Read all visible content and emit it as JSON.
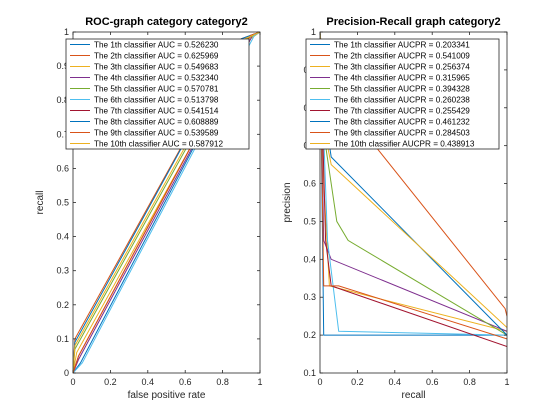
{
  "chart_data": [
    {
      "type": "line",
      "title": "ROC-graph category category2",
      "xlabel": "false positive rate",
      "ylabel": "recall",
      "xlim": [
        0,
        1
      ],
      "ylim": [
        0,
        1
      ],
      "xticks": [
        0,
        0.2,
        0.4,
        0.6,
        0.8,
        1
      ],
      "xtick_labels": [
        "0",
        "0.2",
        "0.4",
        "0.6",
        "0.8",
        "1"
      ],
      "yticks": [
        0,
        0.1,
        0.2,
        0.3,
        0.4,
        0.5,
        0.6,
        0.7,
        0.8,
        0.9,
        1
      ],
      "ytick_labels": [
        "0",
        "0.1",
        "0.2",
        "0.3",
        "0.4",
        "0.5",
        "0.6",
        "0.7",
        "0.8",
        "0.9",
        "1"
      ],
      "legend_position": "top",
      "series": [
        {
          "name": "The 1th classifier AUC = 0.526230",
          "color": "#0072BD",
          "x": [
            0,
            0.04,
            0.96,
            1
          ],
          "y": [
            0,
            0.03,
            0.99,
            1
          ]
        },
        {
          "name": "The 2th classifier AUC = 0.625969",
          "color": "#D95319",
          "x": [
            0,
            0.01,
            0.9,
            1
          ],
          "y": [
            0,
            0.1,
            0.98,
            1
          ]
        },
        {
          "name": "The 3th classifier AUC = 0.549683",
          "color": "#EDB120",
          "x": [
            0,
            0.02,
            0.95,
            1
          ],
          "y": [
            0,
            0.06,
            0.98,
            1
          ]
        },
        {
          "name": "The 4th classifier AUC = 0.532340",
          "color": "#7E2F8E",
          "x": [
            0,
            0.03,
            0.96,
            1
          ],
          "y": [
            0,
            0.04,
            0.99,
            1
          ]
        },
        {
          "name": "The 5th classifier AUC = 0.570781",
          "color": "#77AC30",
          "x": [
            0,
            0.01,
            0.93,
            1
          ],
          "y": [
            0,
            0.07,
            0.98,
            1
          ]
        },
        {
          "name": "The 6th classifier AUC = 0.513798",
          "color": "#4DBEEE",
          "x": [
            0,
            0.05,
            0.97,
            1
          ],
          "y": [
            0,
            0.03,
            0.99,
            1
          ]
        },
        {
          "name": "The 7th classifier AUC = 0.541514",
          "color": "#A2142F",
          "x": [
            0,
            0.03,
            0.95,
            1
          ],
          "y": [
            0,
            0.05,
            0.99,
            1
          ]
        },
        {
          "name": "The 8th classifier AUC = 0.608889",
          "color": "#0072BD",
          "x": [
            0,
            0.01,
            0.9,
            1
          ],
          "y": [
            0,
            0.09,
            0.98,
            1
          ]
        },
        {
          "name": "The 9th classifier AUC = 0.539589",
          "color": "#D95319",
          "x": [
            0,
            0.03,
            0.95,
            1
          ],
          "y": [
            0,
            0.05,
            0.99,
            1
          ]
        },
        {
          "name": "The 10th classifier AUC = 0.587912",
          "color": "#EDB120",
          "x": [
            0,
            0.01,
            0.92,
            1
          ],
          "y": [
            0,
            0.08,
            0.98,
            1
          ]
        }
      ]
    },
    {
      "type": "line",
      "title": "Precision-Recall graph category2",
      "xlabel": "recall",
      "ylabel": "precision",
      "xlim": [
        0,
        1
      ],
      "ylim": [
        0.1,
        1
      ],
      "xticks": [
        0,
        0.2,
        0.4,
        0.6,
        0.8,
        1
      ],
      "xtick_labels": [
        "0",
        "0.2",
        "0.4",
        "0.6",
        "0.8",
        "1"
      ],
      "yticks": [
        0.1,
        0.2,
        0.3,
        0.4,
        0.5,
        0.6,
        0.7,
        0.8,
        0.9,
        1
      ],
      "ytick_labels": [
        "0.1",
        "0.2",
        "0.3",
        "0.4",
        "0.5",
        "0.6",
        "0.7",
        "0.8",
        "0.9",
        "1"
      ],
      "legend_position": "top",
      "series": [
        {
          "name": "The 1th classifier AUCPR = 0.203341",
          "color": "#0072BD",
          "x": [
            0,
            0.02,
            0.04,
            1
          ],
          "y": [
            1,
            0.2,
            0.2,
            0.2
          ]
        },
        {
          "name": "The 2th classifier AUCPR = 0.541009",
          "color": "#D95319",
          "x": [
            0,
            0.02,
            0.05,
            0.99,
            1
          ],
          "y": [
            1,
            0.9,
            0.85,
            0.27,
            0.25
          ]
        },
        {
          "name": "The 3th classifier AUCPR = 0.256374",
          "color": "#EDB120",
          "x": [
            0,
            0.02,
            0.05,
            1
          ],
          "y": [
            1,
            0.6,
            0.33,
            0.21
          ]
        },
        {
          "name": "The 4th classifier AUCPR = 0.315965",
          "color": "#7E2F8E",
          "x": [
            0,
            0.02,
            0.06,
            1
          ],
          "y": [
            1,
            0.45,
            0.4,
            0.21
          ]
        },
        {
          "name": "The 5th classifier AUCPR = 0.394328",
          "color": "#77AC30",
          "x": [
            0,
            0.03,
            0.09,
            0.15,
            1
          ],
          "y": [
            1,
            0.7,
            0.5,
            0.45,
            0.2
          ]
        },
        {
          "name": "The 6th classifier AUCPR = 0.260238",
          "color": "#4DBEEE",
          "x": [
            0,
            0.04,
            0.1,
            1
          ],
          "y": [
            1,
            0.45,
            0.21,
            0.2
          ]
        },
        {
          "name": "The 7th classifier AUCPR = 0.255429",
          "color": "#A2142F",
          "x": [
            0,
            0.03,
            0.06,
            1
          ],
          "y": [
            1,
            0.45,
            0.33,
            0.17
          ]
        },
        {
          "name": "The 8th classifier AUCPR = 0.461232",
          "color": "#0072BD",
          "x": [
            0,
            0.02,
            0.06,
            1
          ],
          "y": [
            1,
            0.8,
            0.67,
            0.2
          ]
        },
        {
          "name": "The 9th classifier AUCPR = 0.284503",
          "color": "#D95319",
          "x": [
            0,
            0.02,
            0.1,
            1
          ],
          "y": [
            1,
            0.33,
            0.33,
            0.19
          ]
        },
        {
          "name": "The 10th classifier AUCPR = 0.438913",
          "color": "#EDB120",
          "x": [
            0,
            0.02,
            0.06,
            1
          ],
          "y": [
            1,
            0.75,
            0.65,
            0.22
          ]
        }
      ]
    }
  ]
}
